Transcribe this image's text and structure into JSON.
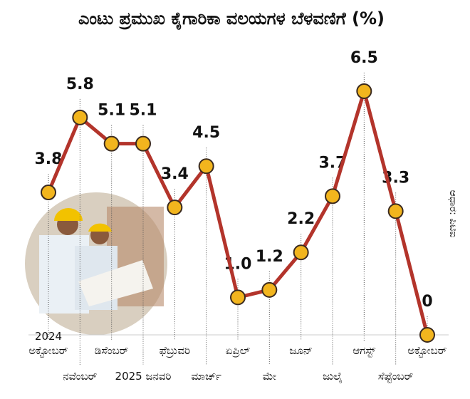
{
  "chart_data": {
    "type": "line",
    "title": "ಎಂಟು ಪ್ರಮುಖ ಕೈಗಾರಿಕಾ ವಲಯಗಳ ಬೆಳವಣಿಗೆ (%)",
    "source": "ಆಧಾರ: ಪಿಟಿಐ",
    "categories": [
      "2024\nಅಕ್ಟೋಬರ್",
      "ನವೆಂಬರ್",
      "ಡಿಸೆಂಬರ್",
      "2025 ಜನವರಿ",
      "ಫೆಬ್ರುವರಿ",
      "ಮಾರ್ಚ್",
      "ಏಪ್ರಿಲ್",
      "ಮೇ",
      "ಜೂನ್",
      "ಜುಲೈ",
      "ಆಗಸ್ಟ್",
      "ಸೆಪ್ಟೆಂಬರ್",
      "ಅಕ್ಟೋಬರ್"
    ],
    "values": [
      3.8,
      5.8,
      5.1,
      5.1,
      3.4,
      4.5,
      1.0,
      1.2,
      2.2,
      3.7,
      6.5,
      3.3,
      0
    ],
    "value_labels": [
      "3.8",
      "5.8",
      "5.1",
      "5.1",
      "3.4",
      "4.5",
      "1.0",
      "1.2",
      "2.2",
      "3.7",
      "6.5",
      "3.3",
      "0"
    ],
    "color": "#b3342b",
    "marker_color": "#f2b51e"
  }
}
